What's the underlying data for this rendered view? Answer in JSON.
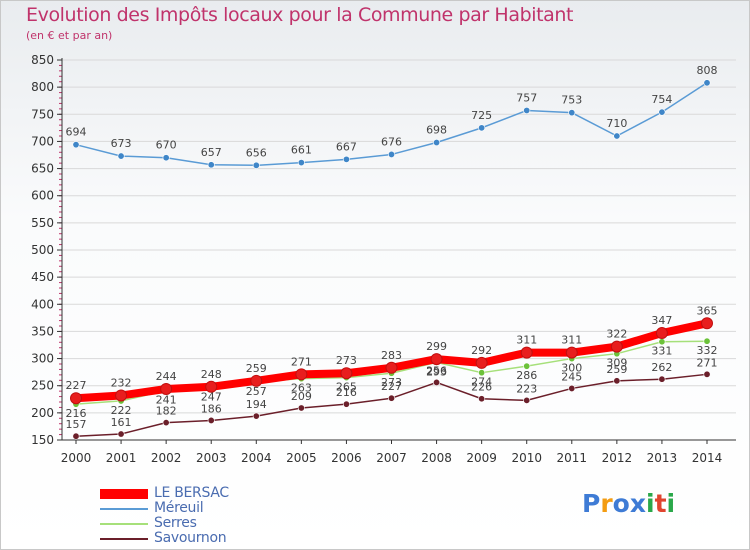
{
  "title": "Evolution des Impôts locaux pour la Commune par Habitant",
  "subtitle": "(en € et par an)",
  "logo": {
    "chars": [
      "P",
      "r",
      "o",
      "x",
      "i",
      "t",
      "i"
    ],
    "colors": [
      "#3e7bd5",
      "#f39c12",
      "#3e7bd5",
      "#3e7bd5",
      "#2aa84a",
      "#e0442f",
      "#2aa84a"
    ]
  },
  "colors": {
    "title": "#c0336b",
    "axis": "#333333",
    "grid": "#d9d9d9",
    "tick_red": "#c0336b",
    "label": "#444444"
  },
  "chart_data": {
    "type": "line",
    "title": "Evolution des Impôts locaux pour la Commune par Habitant",
    "ylabel": "(en € et par an)",
    "xlabel": "",
    "ylim": [
      150,
      850
    ],
    "yticks": [
      150,
      200,
      250,
      300,
      350,
      400,
      450,
      500,
      550,
      600,
      650,
      700,
      750,
      800,
      850
    ],
    "categories": [
      "2000",
      "2001",
      "2002",
      "2003",
      "2004",
      "2005",
      "2006",
      "2007",
      "2008",
      "2009",
      "2010",
      "2011",
      "2012",
      "2013",
      "2014"
    ],
    "grid": true,
    "legend_position": "bottom-left",
    "series": [
      {
        "name": "LE BERSAC",
        "color": "#ff0000",
        "marker": "#e81e1e",
        "width": 8,
        "values": [
          227,
          232,
          244,
          248,
          259,
          271,
          273,
          283,
          299,
          292,
          311,
          311,
          322,
          347,
          365
        ]
      },
      {
        "name": "Méreuil",
        "color": "#5a9bd5",
        "marker": "#3f86c8",
        "width": 1.5,
        "values": [
          694,
          673,
          670,
          657,
          656,
          661,
          667,
          676,
          698,
          725,
          757,
          753,
          710,
          754,
          808
        ]
      },
      {
        "name": "Serres",
        "color": "#a6e07a",
        "marker": "#6cc23a",
        "width": 1.5,
        "values": [
          216,
          222,
          241,
          247,
          257,
          263,
          265,
          273,
          293,
          274,
          286,
          300,
          309,
          331,
          332
        ]
      },
      {
        "name": "Savournon",
        "color": "#6b1f2a",
        "marker": "#6b1f2a",
        "width": 1.5,
        "values": [
          157,
          161,
          182,
          186,
          194,
          209,
          216,
          227,
          256,
          226,
          223,
          245,
          259,
          262,
          271
        ]
      }
    ]
  }
}
